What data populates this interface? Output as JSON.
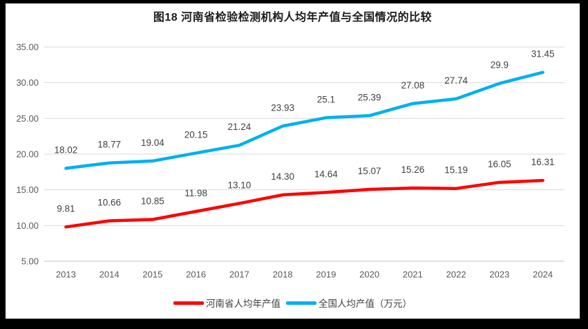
{
  "frame": {
    "border_color": "#000000",
    "background": "#ffffff"
  },
  "chart_data": {
    "type": "line",
    "title": "图18  河南省检验检测机构人均年产值与全国情况的比较",
    "categories": [
      "2013",
      "2014",
      "2015",
      "2016",
      "2017",
      "2018",
      "2019",
      "2020",
      "2021",
      "2022",
      "2023",
      "2024"
    ],
    "series": [
      {
        "name": "河南省人均年产值",
        "color": "#FF0000",
        "values": [
          9.81,
          10.66,
          10.85,
          11.98,
          13.1,
          14.3,
          14.64,
          15.07,
          15.26,
          15.19,
          16.05,
          16.31
        ],
        "labels": [
          "9.81",
          "10.66",
          "10.85",
          "11.98",
          "13.10",
          "14.30",
          "14.64",
          "15.07",
          "15.26",
          "15.19",
          "16.05",
          "16.31"
        ]
      },
      {
        "name": "全国人均产值（万元）",
        "color": "#00B0F0",
        "values": [
          18.02,
          18.77,
          19.04,
          20.15,
          21.24,
          23.93,
          25.1,
          25.39,
          27.08,
          27.74,
          29.9,
          31.45
        ],
        "labels": [
          "18.02",
          "18.77",
          "19.04",
          "20.15",
          "21.24",
          "23.93",
          "25.1",
          "25.39",
          "27.08",
          "27.74",
          "29.9",
          "31.45"
        ]
      }
    ],
    "xlabel": "",
    "ylabel": "",
    "ylim": [
      5,
      35
    ],
    "ytick_interval": 5,
    "ytick_labels": [
      "5.00",
      "10.00",
      "15.00",
      "20.00",
      "25.00",
      "30.00",
      "35.00"
    ],
    "grid": true,
    "gridline_color": "#D9D9D9",
    "axis_line_color": "#C6C6C6",
    "axis_label_color": "#595959",
    "data_label_color": "#404040",
    "legend_position": "bottom"
  }
}
